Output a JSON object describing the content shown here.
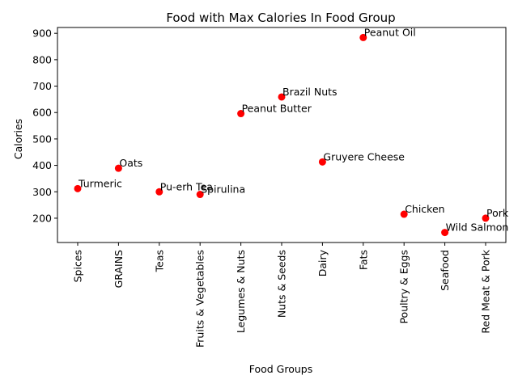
{
  "chart_data": {
    "type": "scatter",
    "title": "Food with Max Calories In Food Group",
    "xlabel": "Food Groups",
    "ylabel": "Calories",
    "categories": [
      "Spices",
      "GRAINS",
      "Teas",
      "Fruits & Vegetables",
      "Legumes & Nuts",
      "Nuts & Seeds",
      "Dairy",
      "Fats",
      "Poultry & Eggs",
      "Seafood",
      "Red Meat & Pork"
    ],
    "values": [
      312,
      389,
      300,
      290,
      596,
      659,
      413,
      884,
      215,
      146,
      200
    ],
    "point_labels": [
      "Turmeric",
      "Oats",
      "Pu-erh Tea",
      "Spirulina",
      "Peanut Butter",
      "Brazil Nuts",
      "Gruyere Cheese",
      "Peanut Oil",
      "Chicken",
      "Wild Salmon",
      "Pork"
    ],
    "yticks": [
      200,
      300,
      400,
      500,
      600,
      700,
      800,
      900
    ],
    "ylim": [
      108,
      922
    ],
    "marker_color": "#ff0000",
    "grid": false,
    "legend": "none"
  }
}
